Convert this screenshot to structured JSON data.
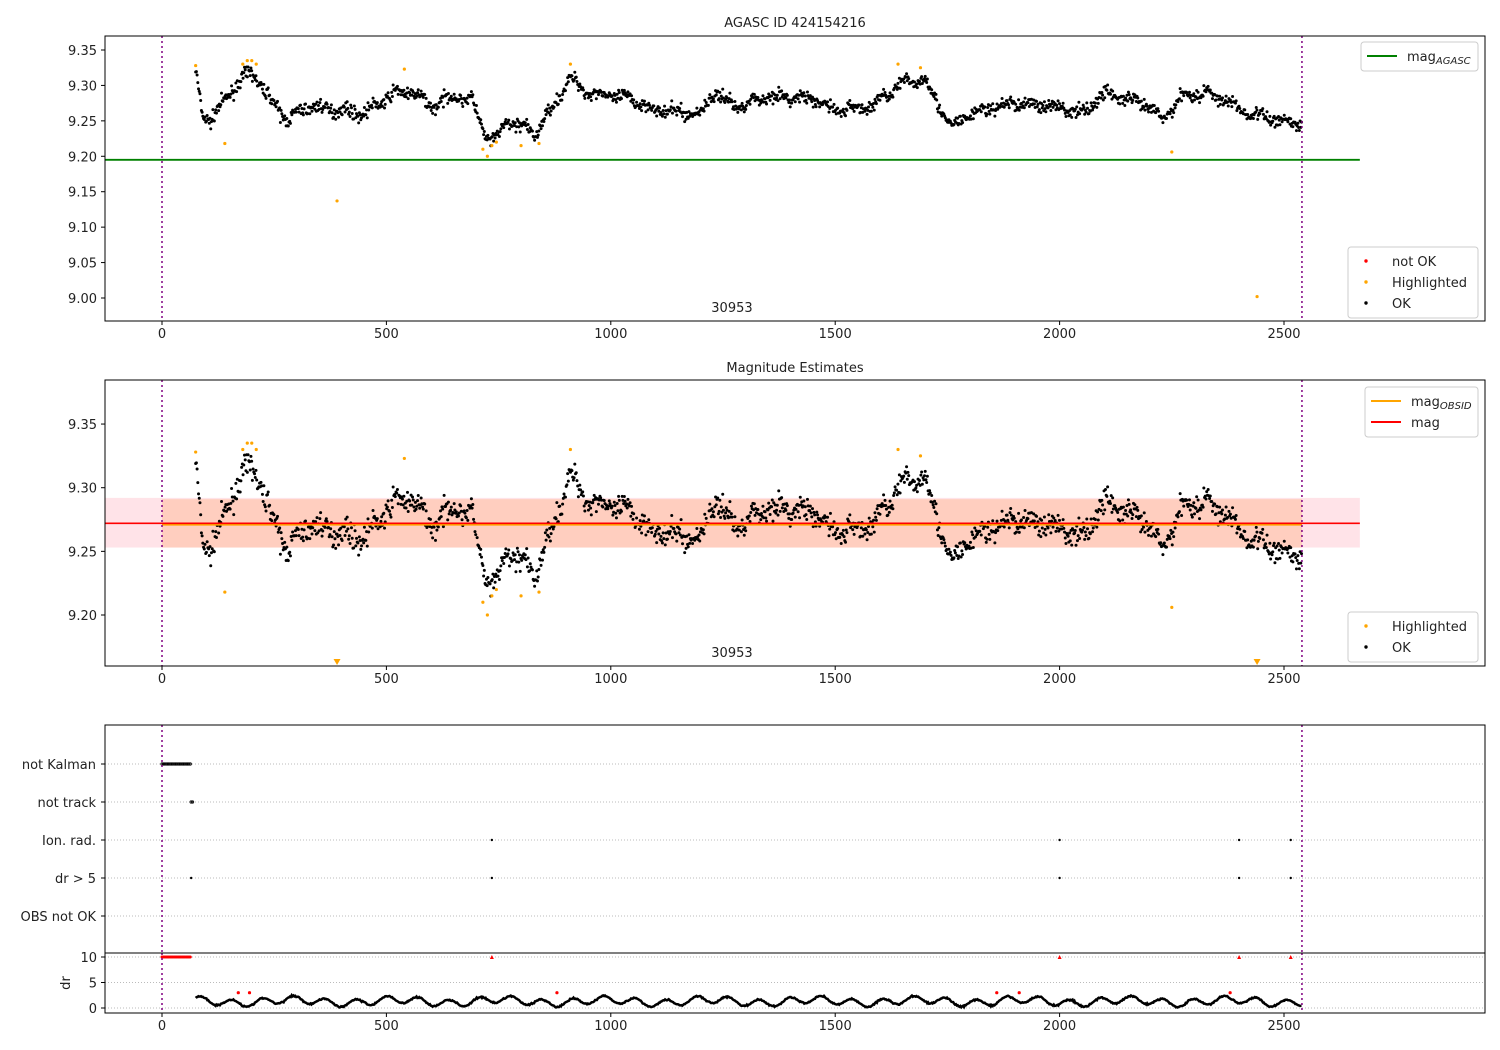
{
  "chart_data": [
    {
      "type": "scatter",
      "title": "AGASC ID 424154216",
      "xlim": [
        -127,
        2948
      ],
      "ylim": [
        8.968,
        9.37
      ],
      "xticks": [
        "0",
        "500",
        "1000",
        "1500",
        "2000",
        "2500"
      ],
      "yticks": [
        "9.35",
        "9.30",
        "9.25",
        "9.20",
        "9.15",
        "9.10",
        "9.05",
        "9.00"
      ],
      "annotation": "30953",
      "legend_top": [
        {
          "label": "mag",
          "sub": "AGASC",
          "color": "#008000"
        }
      ],
      "legend_bottom": [
        {
          "label": "not OK",
          "color": "#ff0000"
        },
        {
          "label": "Highlighted",
          "color": "#ffa500"
        },
        {
          "label": "OK",
          "color": "#000000"
        }
      ],
      "mag_agasc": 9.195
    },
    {
      "type": "scatter",
      "title": "Magnitude Estimates",
      "xlim": [
        -127,
        2948
      ],
      "ylim": [
        9.16,
        9.385
      ],
      "xticks": [
        "0",
        "500",
        "1000",
        "1500",
        "2000",
        "2500"
      ],
      "yticks": [
        "9.35",
        "9.30",
        "9.25",
        "9.20"
      ],
      "annotation": "30953",
      "legend_top": [
        {
          "label": "mag",
          "sub": "OBSID",
          "color": "#ffa500"
        },
        {
          "label": "mag",
          "sub": "",
          "color": "#ff0000"
        }
      ],
      "legend_bottom": [
        {
          "label": "Highlighted",
          "color": "#ffa500"
        },
        {
          "label": "OK",
          "color": "#000000"
        }
      ],
      "mag": 9.272,
      "mag_obsid": 9.271,
      "band": [
        9.253,
        9.291
      ]
    },
    {
      "type": "scatter",
      "title": "",
      "categories": [
        "not Kalman",
        "not track",
        "Ion. rad.",
        "dr > 5",
        "OBS not OK"
      ],
      "flags": {
        "not Kalman": [
          [
            0,
            65
          ]
        ],
        "not track": [
          [
            65,
            70
          ]
        ],
        "Ion. rad.": [
          735,
          2000,
          2400,
          2515
        ],
        "dr > 5": [
          65,
          735,
          2000,
          2400,
          2515
        ],
        "OBS not OK": []
      }
    },
    {
      "type": "line",
      "ylabel": "dr",
      "ylim": [
        -1,
        10.8
      ],
      "yticks": [
        "10",
        "5",
        "0"
      ],
      "xticks": [
        "0",
        "500",
        "1000",
        "1500",
        "2000",
        "2500"
      ],
      "clipped_at_10": [
        [
          0,
          65
        ],
        735,
        2000,
        2400,
        2515
      ]
    }
  ],
  "obs_boundaries": [
    0,
    2540
  ],
  "trend": [
    [
      75,
      9.32
    ],
    [
      90,
      9.26
    ],
    [
      110,
      9.25
    ],
    [
      150,
      9.29
    ],
    [
      200,
      9.32
    ],
    [
      230,
      9.29
    ],
    [
      280,
      9.25
    ],
    [
      320,
      9.27
    ],
    [
      400,
      9.265
    ],
    [
      450,
      9.26
    ],
    [
      520,
      9.29
    ],
    [
      560,
      9.29
    ],
    [
      600,
      9.27
    ],
    [
      650,
      9.285
    ],
    [
      690,
      9.28
    ],
    [
      720,
      9.23
    ],
    [
      740,
      9.22
    ],
    [
      770,
      9.25
    ],
    [
      810,
      9.24
    ],
    [
      830,
      9.23
    ],
    [
      870,
      9.27
    ],
    [
      910,
      9.31
    ],
    [
      950,
      9.29
    ],
    [
      1050,
      9.28
    ],
    [
      1100,
      9.265
    ],
    [
      1200,
      9.26
    ],
    [
      1230,
      9.29
    ],
    [
      1280,
      9.27
    ],
    [
      1350,
      9.285
    ],
    [
      1450,
      9.28
    ],
    [
      1500,
      9.265
    ],
    [
      1580,
      9.27
    ],
    [
      1640,
      9.3
    ],
    [
      1700,
      9.31
    ],
    [
      1740,
      9.26
    ],
    [
      1760,
      9.24
    ],
    [
      1800,
      9.26
    ],
    [
      1900,
      9.275
    ],
    [
      2000,
      9.27
    ],
    [
      2050,
      9.26
    ],
    [
      2100,
      9.29
    ],
    [
      2150,
      9.28
    ],
    [
      2200,
      9.27
    ],
    [
      2230,
      9.25
    ],
    [
      2270,
      9.285
    ],
    [
      2330,
      9.29
    ],
    [
      2380,
      9.275
    ],
    [
      2420,
      9.26
    ],
    [
      2500,
      9.25
    ],
    [
      2540,
      9.245
    ]
  ],
  "highlighted": [
    [
      75,
      9.328
    ],
    [
      140,
      9.218
    ],
    [
      180,
      9.33
    ],
    [
      190,
      9.335
    ],
    [
      200,
      9.335
    ],
    [
      210,
      9.33
    ],
    [
      390,
      9.137
    ],
    [
      540,
      9.323
    ],
    [
      715,
      9.21
    ],
    [
      725,
      9.2
    ],
    [
      735,
      9.215
    ],
    [
      745,
      9.22
    ],
    [
      800,
      9.215
    ],
    [
      840,
      9.218
    ],
    [
      910,
      9.33
    ],
    [
      1640,
      9.33
    ],
    [
      1690,
      9.325
    ],
    [
      2250,
      9.206
    ],
    [
      2440,
      9.002
    ]
  ]
}
